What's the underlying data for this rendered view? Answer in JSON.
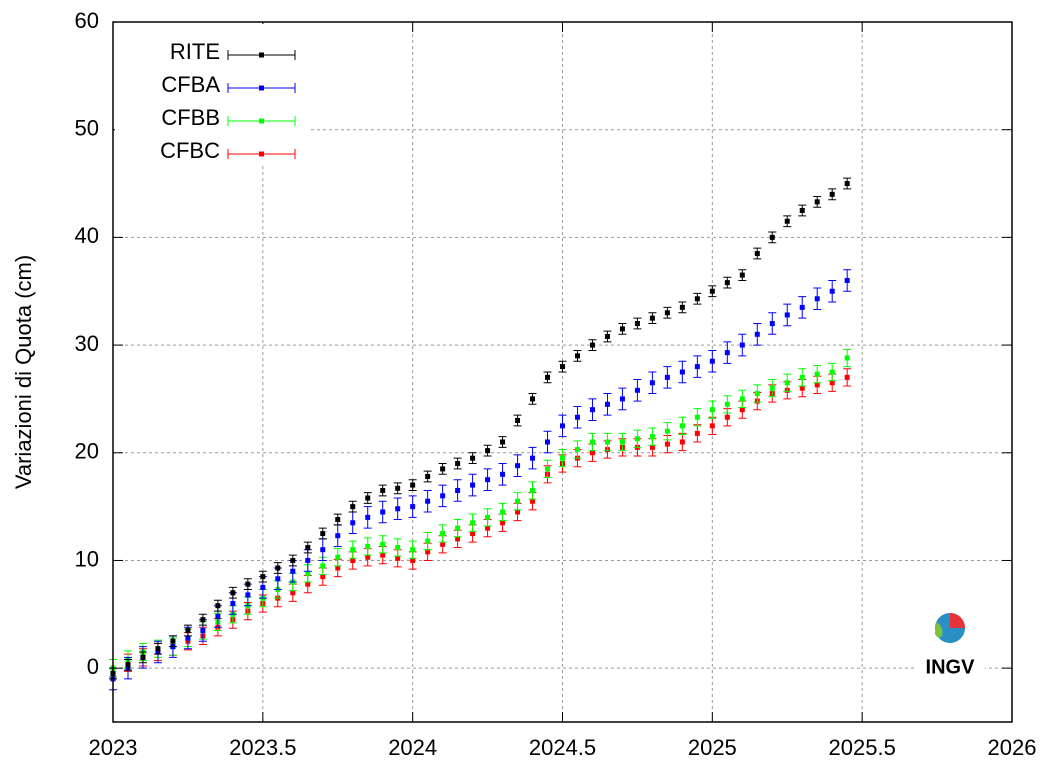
{
  "chart_data": {
    "type": "errorbar",
    "y_label": "Variazioni di Quota (cm)",
    "logo_text": "INGV",
    "x": [
      2023.0,
      2023.05,
      2023.1,
      2023.15,
      2023.2,
      2023.25,
      2023.3,
      2023.35,
      2023.4,
      2023.45,
      2023.5,
      2023.55,
      2023.6,
      2023.65,
      2023.7,
      2023.75,
      2023.8,
      2023.85,
      2023.9,
      2023.95,
      2024.0,
      2024.05,
      2024.1,
      2024.15,
      2024.2,
      2024.25,
      2024.3,
      2024.35,
      2024.4,
      2024.45,
      2024.5,
      2024.55,
      2024.6,
      2024.65,
      2024.7,
      2024.75,
      2024.8,
      2024.85,
      2024.9,
      2024.95,
      2025.0,
      2025.05,
      2025.1,
      2025.15,
      2025.2,
      2025.25,
      2025.3,
      2025.35,
      2025.4,
      2025.45
    ],
    "series": [
      {
        "name": "RITE",
        "color": "#000000",
        "error": 0.5,
        "values": [
          -0.5,
          0.3,
          1,
          1.8,
          2.5,
          3.5,
          4.5,
          5.8,
          7,
          7.8,
          8.5,
          9.3,
          10,
          11.2,
          12.5,
          13.8,
          15,
          15.8,
          16.5,
          16.7,
          17,
          17.8,
          18.5,
          19,
          19.5,
          20.2,
          21,
          23,
          25,
          27,
          28,
          29,
          30,
          30.8,
          31.5,
          32,
          32.5,
          33,
          33.5,
          34.3,
          35,
          35.8,
          36.5,
          38.5,
          40,
          41.5,
          42.5,
          43.3,
          44,
          45
        ]
      },
      {
        "name": "CFBA",
        "color": "#0000ff",
        "error": 1,
        "values": [
          -1,
          0,
          1,
          1.5,
          2,
          2.8,
          3.5,
          4.8,
          6,
          6.8,
          7.5,
          8.3,
          9,
          10,
          11,
          12.3,
          13.5,
          14,
          14.5,
          14.8,
          15,
          15.5,
          16,
          16.5,
          17,
          17.5,
          18,
          18.8,
          19.5,
          21,
          22.5,
          23.3,
          24,
          24.5,
          25,
          25.8,
          26.5,
          27,
          27.5,
          28,
          28.5,
          29.3,
          30,
          31,
          32,
          32.8,
          33.5,
          34.3,
          35,
          36
        ]
      },
      {
        "name": "CFBB",
        "color": "#00ff00",
        "error": 0.8,
        "values": [
          0,
          0.8,
          1.5,
          1.8,
          2,
          2.8,
          3.5,
          4.3,
          5,
          5.8,
          6.5,
          7.3,
          8,
          8.8,
          9.5,
          10.3,
          11,
          11.3,
          11.5,
          11.2,
          11,
          11.8,
          12.5,
          13,
          13.5,
          14,
          14.5,
          15.5,
          16.5,
          18.5,
          19.5,
          20.3,
          21,
          21,
          21,
          21.3,
          21.5,
          22,
          22.5,
          23.3,
          24,
          24.5,
          25,
          25.5,
          26,
          26.5,
          27,
          27.3,
          27.5,
          28.8
        ]
      },
      {
        "name": "CFBC",
        "color": "#ff0000",
        "error": 0.8,
        "values": [
          0,
          0.5,
          1,
          1.5,
          2,
          2.5,
          3,
          3.8,
          4.5,
          5.3,
          6,
          6.5,
          7,
          7.8,
          8.5,
          9.3,
          10,
          10.3,
          10.5,
          10.2,
          10,
          10.8,
          11.5,
          12,
          12.5,
          13,
          13.5,
          14.5,
          15.5,
          18,
          19,
          19.5,
          20,
          20.3,
          20.5,
          20.5,
          20.5,
          20.8,
          21,
          21.8,
          22.5,
          23.3,
          24,
          24.8,
          25.5,
          25.8,
          26,
          26.3,
          26.5,
          27
        ]
      }
    ],
    "xlim": [
      2023,
      2026
    ],
    "xticks": [
      2023,
      2023.5,
      2024,
      2024.5,
      2025,
      2025.5,
      2026
    ],
    "ylim": [
      -5,
      60
    ],
    "yticks": [
      0,
      10,
      20,
      30,
      40,
      50,
      60
    ],
    "grid": true,
    "legend": "upper-left"
  }
}
